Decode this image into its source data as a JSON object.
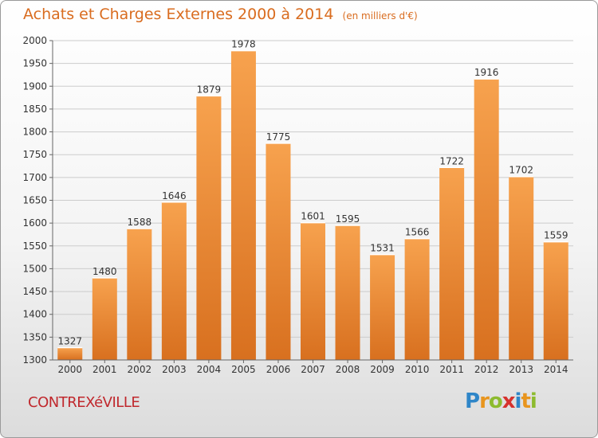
{
  "header": {
    "title": "Achats et Charges Externes 2000 à 2014",
    "unit": "(en milliers d'€)"
  },
  "footer": {
    "commune": "CONTREXéVILLE",
    "logo_letters": [
      "P",
      "r",
      "o",
      "x",
      "i",
      "t",
      "i"
    ],
    "logo_colors": [
      "#2f86c8",
      "#e8951e",
      "#8dbb2f",
      "#d6322d",
      "#2f86c8",
      "#e8951e",
      "#8dbb2f"
    ]
  },
  "chart_data": {
    "type": "bar",
    "title": "Achats et Charges Externes 2000 à 2014",
    "xlabel": "",
    "ylabel": "",
    "categories": [
      "2000",
      "2001",
      "2002",
      "2003",
      "2004",
      "2005",
      "2006",
      "2007",
      "2008",
      "2009",
      "2010",
      "2011",
      "2012",
      "2013",
      "2014"
    ],
    "values": [
      1327,
      1480,
      1588,
      1646,
      1879,
      1978,
      1775,
      1601,
      1595,
      1531,
      1566,
      1722,
      1916,
      1702,
      1559
    ],
    "ylim": [
      1300,
      2000
    ],
    "yticks": [
      1300,
      1350,
      1400,
      1450,
      1500,
      1550,
      1600,
      1650,
      1700,
      1750,
      1800,
      1850,
      1900,
      1950,
      2000
    ],
    "grid": true,
    "bar_color": "#f0923a",
    "bar_color_dark": "#d8701f"
  }
}
